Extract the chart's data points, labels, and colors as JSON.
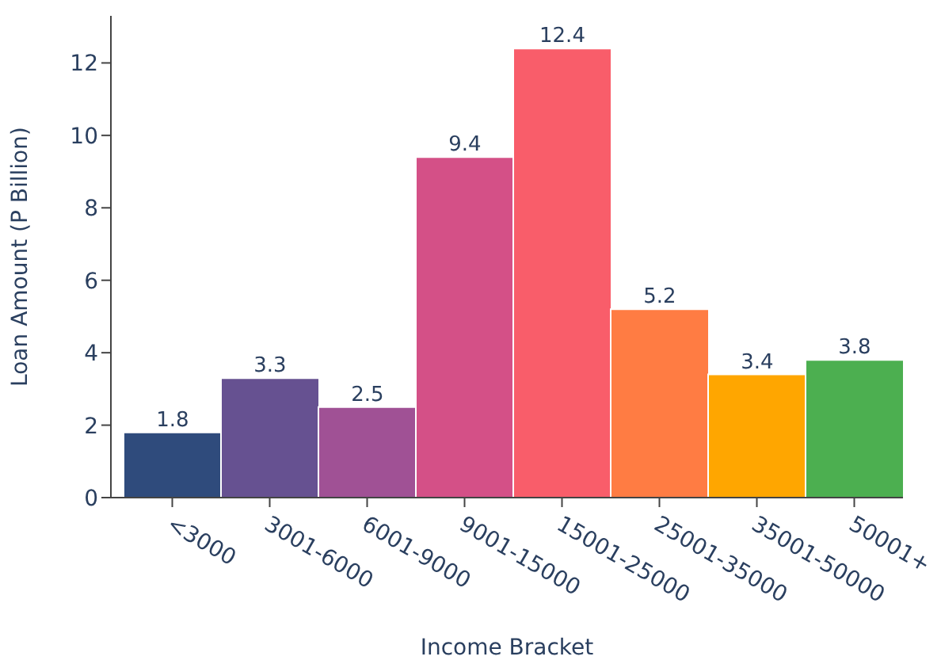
{
  "chart_data": {
    "type": "bar",
    "xlabel": "Income Bracket",
    "ylabel": "Loan Amount (P Billion)",
    "categories": [
      "<3000",
      "3001-6000",
      "6001-9000",
      "9001-15000",
      "15001-25000",
      "25001-35000",
      "35001-50000",
      "50001+"
    ],
    "values": [
      1.8,
      3.3,
      2.5,
      9.4,
      12.4,
      5.2,
      3.4,
      3.8
    ],
    "colors": [
      "#2f4b7c",
      "#665191",
      "#a05195",
      "#d45087",
      "#f95d6a",
      "#ff7c43",
      "#ffa600",
      "#4caf50"
    ],
    "ylim": [
      0,
      13.3
    ],
    "yticks": [
      0,
      2,
      4,
      6,
      8,
      10,
      12
    ],
    "data_labels": true,
    "grid": false,
    "legend": false
  }
}
